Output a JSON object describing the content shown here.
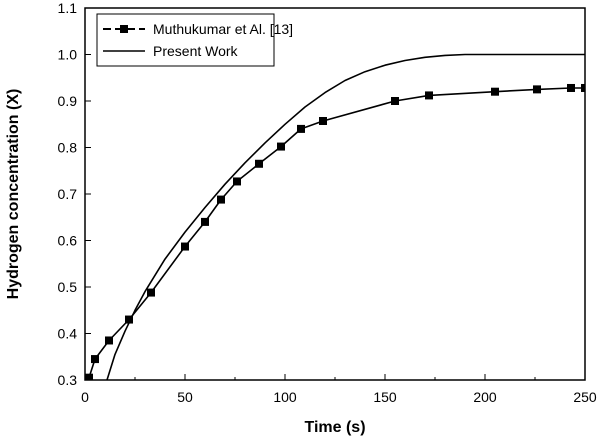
{
  "chart_data": {
    "type": "line",
    "xlabel": "Time (s)",
    "ylabel": "Hydrogen concentration (X)",
    "xlim": [
      0,
      250
    ],
    "ylim": [
      0.3,
      1.1
    ],
    "xticks": [
      "0",
      "50",
      "100",
      "150",
      "200",
      "250"
    ],
    "yticks": [
      "0.3",
      "0.4",
      "0.5",
      "0.6",
      "0.7",
      "0.8",
      "0.9",
      "1.0",
      "1.1"
    ],
    "grid": false,
    "legend_position": "top-left",
    "series": [
      {
        "name": "Muthukumar et Al. [13]",
        "style": "line-with-square-markers",
        "color": "#000000",
        "x": [
          2,
          5,
          12,
          22,
          33,
          50,
          60,
          68,
          76,
          87,
          98,
          108,
          119,
          155,
          172,
          205,
          226,
          243,
          250
        ],
        "y": [
          0.305,
          0.345,
          0.385,
          0.43,
          0.488,
          0.587,
          0.64,
          0.688,
          0.727,
          0.765,
          0.802,
          0.84,
          0.857,
          0.9,
          0.912,
          0.92,
          0.925,
          0.928,
          0.928
        ]
      },
      {
        "name": "Present Work",
        "style": "line",
        "color": "#000000",
        "x": [
          11,
          15,
          20,
          25,
          30,
          40,
          50,
          60,
          70,
          80,
          90,
          100,
          110,
          120,
          130,
          140,
          150,
          160,
          170,
          180,
          190,
          200,
          210,
          220,
          230,
          240,
          250
        ],
        "y": [
          0.3,
          0.355,
          0.405,
          0.45,
          0.49,
          0.56,
          0.618,
          0.671,
          0.721,
          0.767,
          0.81,
          0.85,
          0.887,
          0.918,
          0.944,
          0.963,
          0.977,
          0.987,
          0.994,
          0.998,
          1.0,
          1.0,
          1.0,
          1.0,
          1.0,
          1.0,
          1.0
        ]
      }
    ]
  }
}
